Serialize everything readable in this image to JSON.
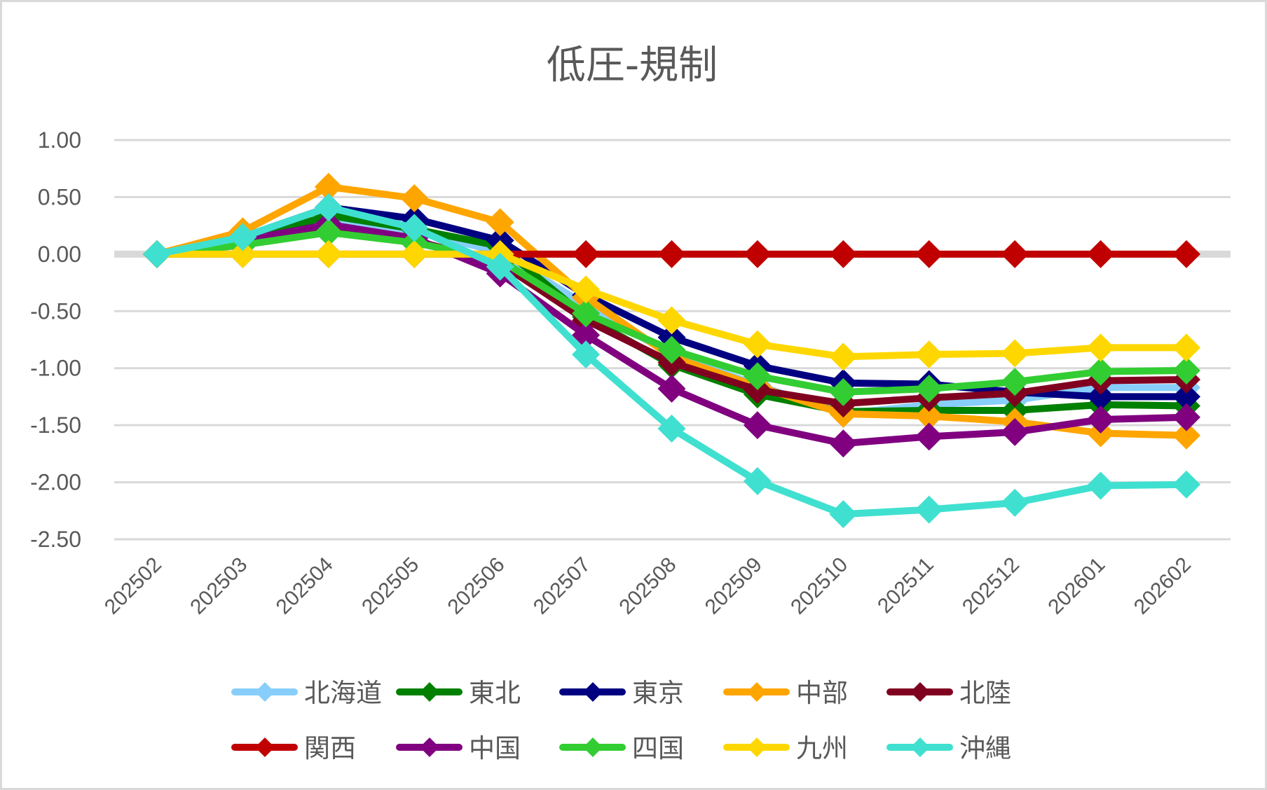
{
  "chart_data": {
    "type": "line",
    "title": "低圧-規制",
    "xlabel": "",
    "ylabel": "",
    "ylim": [
      -2.5,
      1.0
    ],
    "yticks": [
      "1.00",
      "0.50",
      "0.00",
      "-0.50",
      "-1.00",
      "-1.50",
      "-2.00",
      "-2.50"
    ],
    "ytick_values": [
      1.0,
      0.5,
      0.0,
      -0.5,
      -1.0,
      -1.5,
      -2.0,
      -2.5
    ],
    "grid": true,
    "legend_position": "bottom",
    "categories": [
      "202502",
      "202503",
      "202504",
      "202505",
      "202506",
      "202507",
      "202508",
      "202509",
      "202510",
      "202511",
      "202512",
      "202601",
      "202602"
    ],
    "series": [
      {
        "name": "北海道",
        "color": "#87CEFA",
        "values": [
          0,
          0.12,
          0.3,
          0.2,
          0.02,
          -0.45,
          -0.88,
          -1.15,
          -1.4,
          -1.32,
          -1.28,
          -1.17,
          -1.17
        ]
      },
      {
        "name": "東北",
        "color": "#008000",
        "values": [
          0,
          0.1,
          0.34,
          0.22,
          0.07,
          -0.55,
          -0.97,
          -1.23,
          -1.38,
          -1.37,
          -1.37,
          -1.32,
          -1.33
        ]
      },
      {
        "name": "東京",
        "color": "#000080",
        "values": [
          0,
          0.15,
          0.41,
          0.31,
          0.12,
          -0.36,
          -0.73,
          -0.98,
          -1.13,
          -1.14,
          -1.21,
          -1.25,
          -1.25
        ]
      },
      {
        "name": "中部",
        "color": "#FFA500",
        "values": [
          0,
          0.2,
          0.59,
          0.49,
          0.28,
          -0.38,
          -0.9,
          -1.16,
          -1.4,
          -1.42,
          -1.47,
          -1.57,
          -1.59
        ]
      },
      {
        "name": "北陸",
        "color": "#800020",
        "values": [
          0,
          0.08,
          0.23,
          0.12,
          -0.08,
          -0.58,
          -0.95,
          -1.19,
          -1.31,
          -1.26,
          -1.22,
          -1.11,
          -1.1
        ]
      },
      {
        "name": "関西",
        "color": "#C00000",
        "values": [
          0,
          0,
          0,
          0,
          0,
          0,
          0,
          0,
          0,
          0,
          0,
          0,
          0
        ]
      },
      {
        "name": "中国",
        "color": "#800080",
        "values": [
          0,
          0.12,
          0.26,
          0.14,
          -0.17,
          -0.71,
          -1.18,
          -1.5,
          -1.66,
          -1.6,
          -1.56,
          -1.45,
          -1.43
        ]
      },
      {
        "name": "四国",
        "color": "#32CD32",
        "values": [
          0,
          0.08,
          0.19,
          0.1,
          -0.05,
          -0.52,
          -0.84,
          -1.07,
          -1.21,
          -1.18,
          -1.12,
          -1.03,
          -1.02
        ]
      },
      {
        "name": "九州",
        "color": "#FFD700",
        "values": [
          0,
          0,
          0,
          0,
          0,
          -0.31,
          -0.58,
          -0.79,
          -0.9,
          -0.88,
          -0.87,
          -0.82,
          -0.82
        ]
      },
      {
        "name": "沖縄",
        "color": "#40E0D0",
        "values": [
          0,
          0.15,
          0.41,
          0.23,
          -0.11,
          -0.88,
          -1.53,
          -1.99,
          -2.28,
          -2.24,
          -2.18,
          -2.03,
          -2.02
        ]
      }
    ]
  },
  "colors": {
    "gridline": "#D9D9D9",
    "zero_line": "#D9D9D9",
    "text": "#595959"
  }
}
